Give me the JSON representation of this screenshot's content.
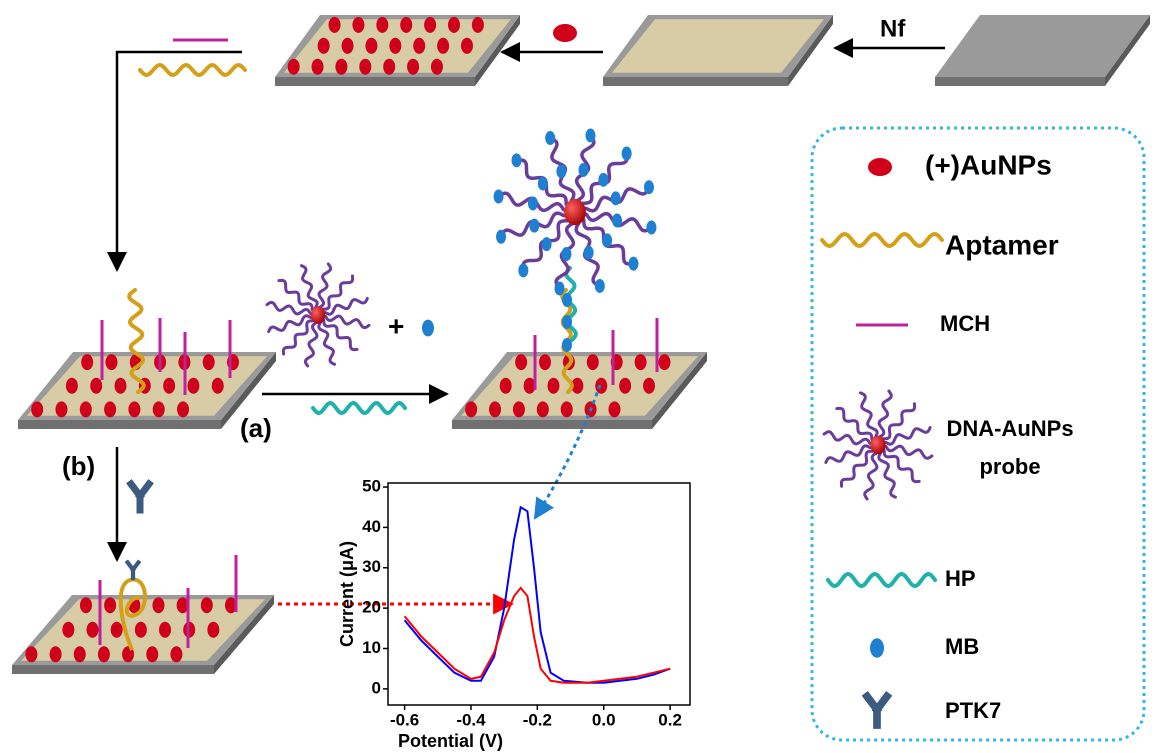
{
  "labels": {
    "nf": "Nf",
    "a": "(a)",
    "b": "(b)",
    "plus": "+"
  },
  "legend": {
    "items": [
      {
        "label": "(+)AuNPs"
      },
      {
        "label": "Aptamer"
      },
      {
        "label": "MCH"
      },
      {
        "label_lines": [
          "DNA-AuNPs",
          "probe"
        ]
      },
      {
        "label": "HP"
      },
      {
        "label": "MB"
      },
      {
        "label": "PTK7"
      }
    ]
  },
  "chart": {
    "type": "line",
    "x_label": "Potential (V)",
    "y_label": "Current (μA)",
    "x": [
      -0.6,
      -0.55,
      -0.5,
      -0.45,
      -0.4,
      -0.37,
      -0.33,
      -0.3,
      -0.27,
      -0.25,
      -0.23,
      -0.21,
      -0.19,
      -0.16,
      -0.12,
      -0.05,
      0,
      0.05,
      0.1,
      0.15,
      0.2
    ],
    "series": [
      {
        "color": "#0000ff",
        "values": [
          17,
          12,
          8,
          4,
          2,
          2,
          8,
          20,
          37,
          45,
          44,
          30,
          14,
          4,
          2,
          1.5,
          1.5,
          2,
          2.5,
          3.5,
          5
        ]
      },
      {
        "color": "#ff0000",
        "values": [
          18,
          13,
          9,
          5,
          2.5,
          3,
          9,
          17,
          23,
          25,
          23,
          13,
          5,
          2,
          1.5,
          1.5,
          2,
          2.5,
          3,
          4,
          5
        ]
      }
    ],
    "xlim": [
      -0.65,
      0.26
    ],
    "ylim": [
      -4,
      51
    ],
    "xticks": [
      -0.6,
      -0.4,
      -0.2,
      {
        "value": 0,
        "label": "0.0"
      },
      0.2
    ],
    "yticks": [
      0,
      10,
      20,
      30,
      40,
      50
    ]
  }
}
